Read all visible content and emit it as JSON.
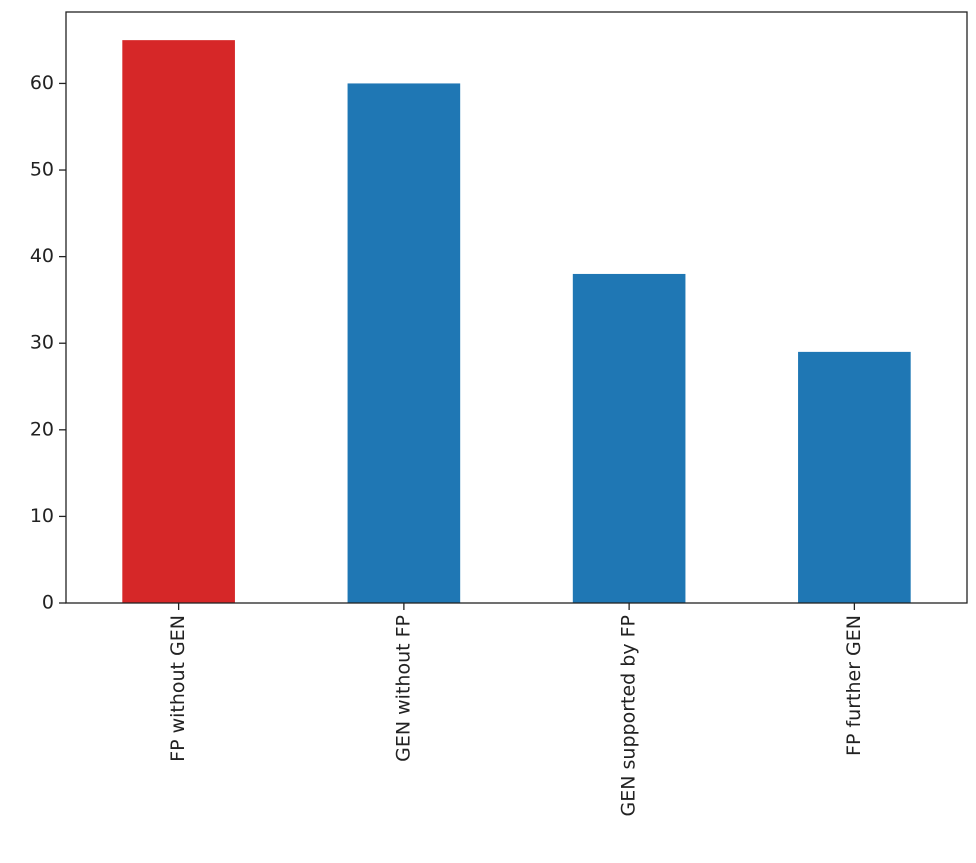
{
  "chart_data": {
    "type": "bar",
    "categories": [
      "FP without GEN",
      "GEN without FP",
      "GEN supported by FP",
      "FP further GEN"
    ],
    "values": [
      65,
      60,
      38,
      29
    ],
    "colors": [
      "#d62728",
      "#1f77b4",
      "#1f77b4",
      "#1f77b4"
    ],
    "ylim": [
      0,
      68.25
    ],
    "yticks": [
      0,
      10,
      20,
      30,
      40,
      50,
      60
    ],
    "grid": false
  }
}
